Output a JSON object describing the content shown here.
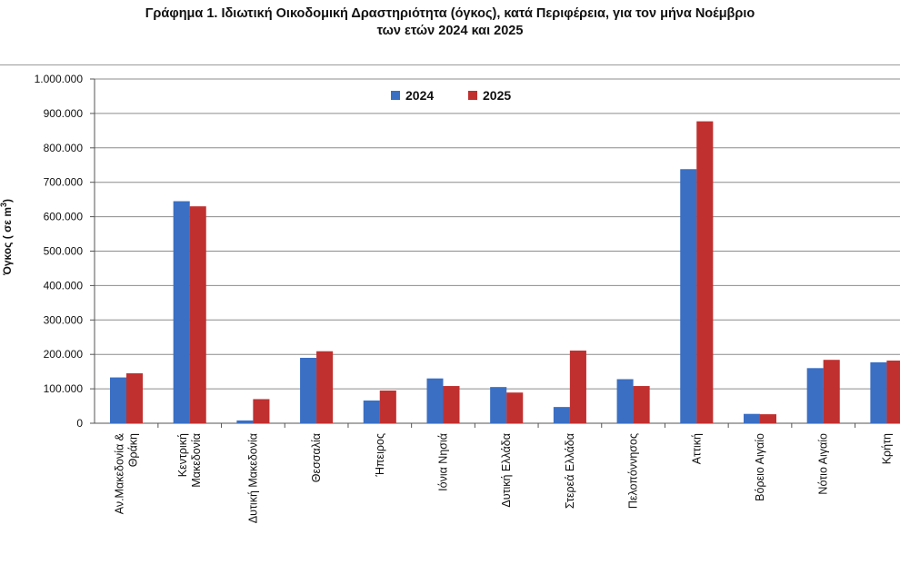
{
  "title_line1": "Γράφημα 1.  Ιδιωτική Οικοδομική Δραστηριότητα (όγκος), κατά Περιφέρεια, για τον μήνα Νοέμβριο",
  "title_line2": "των ετών 2024 και 2025",
  "colors": {
    "series_2024": "#3a6fc4",
    "series_2025": "#c0302f",
    "grid": "#8c8c8c",
    "axis": "#555555"
  },
  "chart_data": {
    "type": "bar",
    "title": "Γράφημα 1.  Ιδιωτική Οικοδομική Δραστηριότητα (όγκος), κατά Περιφέρεια, για τον μήνα Νοέμβριο των ετών 2024 και 2025",
    "ylabel": "Όγκος ( σε  m³)",
    "ylabel_main": "Όγκος ( σε  m",
    "ylabel_sup": "3",
    "ylabel_close": ")",
    "xlabel": "",
    "ylim": [
      0,
      1000000
    ],
    "yticks": [
      "0",
      "100.000",
      "200.000",
      "300.000",
      "400.000",
      "500.000",
      "600.000",
      "700.000",
      "800.000",
      "900.000",
      "1.000.000"
    ],
    "legend_position": "top-center",
    "grid": true,
    "categories": [
      [
        "Αν.Μακεδονία &",
        "Θράκη"
      ],
      [
        "Κεντρική",
        "Μακεδονία"
      ],
      [
        "Δυτική Μακεδονία"
      ],
      [
        "Θεσσαλία"
      ],
      [
        "Ήπειρος"
      ],
      [
        "Ιόνια Νησιά"
      ],
      [
        "Δυτική Ελλάδα"
      ],
      [
        "Στερεά Ελλάδα"
      ],
      [
        "Πελοπόννησος"
      ],
      [
        "Αττική"
      ],
      [
        "Βόρειο Αιγαίο"
      ],
      [
        "Νότιο Αιγαίο"
      ],
      [
        "Κρήτη"
      ]
    ],
    "series": [
      {
        "name": "2024",
        "values": [
          133000,
          645000,
          8000,
          190000,
          66000,
          130000,
          105000,
          47000,
          128000,
          738000,
          27000,
          160000,
          177000
        ]
      },
      {
        "name": "2025",
        "values": [
          145000,
          630000,
          70000,
          209000,
          95000,
          108000,
          89000,
          211000,
          108000,
          877000,
          26000,
          184000,
          182000
        ]
      }
    ]
  }
}
